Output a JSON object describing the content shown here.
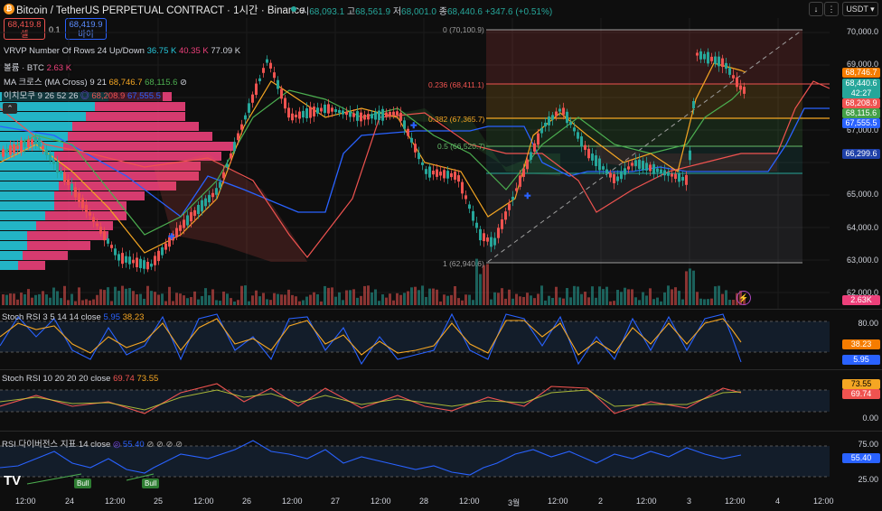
{
  "header": {
    "coin_icon": "bitcoin-icon",
    "title": "Bitcoin / TetherUS PERPETUAL CONTRACT · 1시간 · Binance",
    "o_label": "시",
    "o_val": "68,093.1",
    "h_label": "고",
    "h_val": "68,561.9",
    "l_label": "저",
    "l_val": "68,001.0",
    "c_label": "종",
    "c_val": "68,440.6",
    "change": "+347.6 (+0.51%)",
    "currency": "USDT"
  },
  "trade": {
    "sell_price": "68,419.8",
    "sell_label": "셀",
    "spread": "0.1",
    "buy_price": "68,419.9",
    "buy_label": "바이"
  },
  "legends": {
    "vrvp_name": "VRVP Number Of Rows 24 Up/Down",
    "vrvp_v1": "36.75 K",
    "vrvp_v2": "40.35 K",
    "vrvp_v3": "77.09 K",
    "vol_name": "볼륨 · BTC",
    "vol_val": "2.63 K",
    "ma_name": "MA 크로스 (MA Cross) 9 21",
    "ma_v1": "68,746.7",
    "ma_v2": "68,115.6",
    "ichi_name": "이치모쿠 9 26 52 26",
    "ichi_v1": "68,208.9",
    "ichi_v2": "67,555.5"
  },
  "fib": {
    "l0": "0 (70,100.9)",
    "l236": "0.236 (68,411.1)",
    "l382": "0.382 (67,365.7)",
    "l5": "0.5 (66,520.7)",
    "l1": "1 (62,940.6)"
  },
  "price_axis": [
    "70,000.0",
    "69,000.0",
    "67,000.0",
    "65,000.0",
    "64,000.0",
    "63,000.0",
    "62,000.0"
  ],
  "price_tags": {
    "ma1": "68,746.7",
    "last": "68,440.6",
    "countdown": "42:27",
    "ichi1": "68,208.9",
    "ma2": "68,115.6",
    "ichi2": "67,555.5",
    "low": "66,299.6",
    "vol": "2.63K"
  },
  "stoch1": {
    "name": "Stoch RSI 3 5 14 14 close",
    "k": "5.95",
    "d": "38.23",
    "axis_top": "80.00",
    "axis_bottom": "20.00"
  },
  "stoch2": {
    "name": "Stoch RSI 10 20 20 20 close",
    "k": "69.74",
    "d": "73.55",
    "axis_bottom": "0.00"
  },
  "rsi": {
    "name": "RSI 다이버전스 지표 14 close",
    "val": "55.40",
    "axis_top": "75.00",
    "axis_bottom": "25.00",
    "bull1": "Bull",
    "bull2": "Bull"
  },
  "time_axis": [
    "12:00",
    "24",
    "12:00",
    "25",
    "12:00",
    "26",
    "12:00",
    "27",
    "12:00",
    "28",
    "12:00",
    "3월",
    "12:00",
    "2",
    "12:00",
    "3",
    "12:00",
    "4",
    "12:00"
  ],
  "colors": {
    "up": "#26a69a",
    "down": "#ef5350",
    "ma_fast": "#f5a623",
    "ma_slow": "#4caf50",
    "ichi_lead": "#2962ff"
  }
}
